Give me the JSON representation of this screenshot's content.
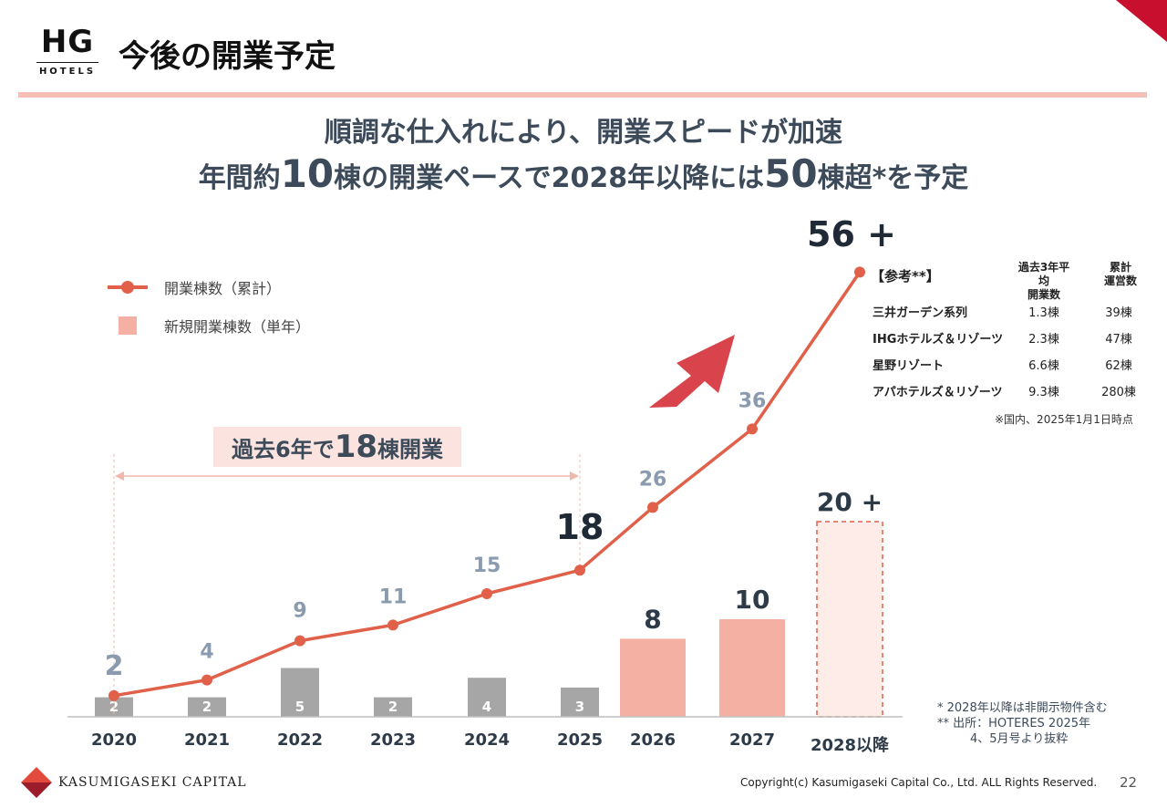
{
  "header": {
    "logo_mark": "HG",
    "logo_sub": "HOTELS",
    "title": "今後の開業予定"
  },
  "headline": {
    "line1": "順調な仕入れにより、開業スピードが加速",
    "line2_a": "年間約",
    "line2_num1": "10",
    "line2_b": "棟の開業ペースで2028年以降には",
    "line2_num2": "50",
    "line2_c": "棟超*を予定"
  },
  "legend": {
    "cumulative": "開業棟数（累計）",
    "annual": "新規開業棟数（単年）"
  },
  "period_label": {
    "a": "過去6年で",
    "num": "18",
    "b": "棟開業"
  },
  "chart_data": {
    "type": "bar",
    "categories": [
      "2020",
      "2021",
      "2022",
      "2023",
      "2024",
      "2025",
      "2026",
      "2027",
      "2028以降"
    ],
    "series": [
      {
        "name": "新規開業棟数（単年）",
        "type": "bar",
        "values": [
          2,
          2,
          5,
          2,
          4,
          3,
          8,
          10,
          20
        ],
        "labels": [
          "2",
          "2",
          "5",
          "2",
          "4",
          "3",
          "8",
          "10",
          "20 +"
        ]
      },
      {
        "name": "開業棟数（累計）",
        "type": "line",
        "values": [
          2,
          4,
          9,
          11,
          15,
          18,
          26,
          36,
          56
        ],
        "labels": [
          "2",
          "4",
          "9",
          "11",
          "15",
          "18",
          "26",
          "36",
          "56 +"
        ]
      }
    ],
    "colors": {
      "past_bar": "#a6a6a6",
      "future_bar": "#f4b0a2",
      "line": "#e0604a",
      "past_label": "#8a9bb0",
      "arrow": "#d9444c"
    }
  },
  "reference": {
    "title": "【参考**】",
    "col_avg": [
      "過去3年平均",
      "開業数"
    ],
    "col_total": [
      "累計",
      "運営数"
    ],
    "rows": [
      {
        "name": "三井ガーデン系列",
        "avg": "1.3棟",
        "total": "39棟"
      },
      {
        "name": "IHGホテルズ＆リゾーツ",
        "avg": "2.3棟",
        "total": "47棟"
      },
      {
        "name": "星野リゾート",
        "avg": "6.6棟",
        "total": "62棟"
      },
      {
        "name": "アパホテルズ＆リゾーツ",
        "avg": "9.3棟",
        "total": "280棟"
      }
    ],
    "note": "※国内、2025年1月1日時点"
  },
  "footnotes": {
    "line1": "* 2028年以降は非開示物件含む",
    "line2": "** 出所：HOTERES 2025年",
    "line3": "4、5月号より抜粋"
  },
  "footer": {
    "company": "KASUMIGASEKI CAPITAL",
    "copyright": "Copyright(c) Kasumigaseki Capital Co., Ltd. ALL Rights Reserved.",
    "page": "22"
  }
}
